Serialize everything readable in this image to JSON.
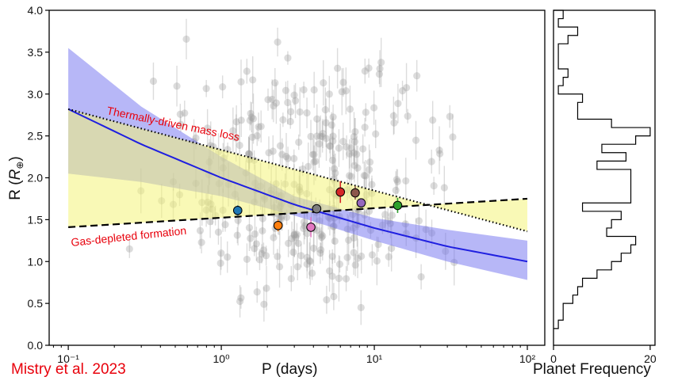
{
  "credit": "Mistry et al. 2023",
  "chart_data": [
    {
      "type": "scatter",
      "title": "",
      "xlabel": "P (days)",
      "ylabel": "R (R⊕)",
      "xscale": "log",
      "xlim": [
        0.075,
        130
      ],
      "ylim": [
        0.0,
        4.0
      ],
      "xticks": [
        0.1,
        1,
        10,
        100
      ],
      "xtick_labels": [
        "10⁻¹",
        "10⁰",
        "10¹",
        "10²"
      ],
      "yticks": [
        0.0,
        0.5,
        1.0,
        1.5,
        2.0,
        2.5,
        3.0,
        3.5,
        4.0
      ],
      "ytick_labels": [
        "0.0",
        "0.5",
        "1.0",
        "1.5",
        "2.0",
        "2.5",
        "3.0",
        "3.5",
        "4.0"
      ],
      "colors": {
        "blue_line": "#1f1fe0",
        "blue_band": "#6f6ff0",
        "yellow_band": "#f4f47a",
        "annotation": "#e8000b",
        "background_points": "#9a9a9a"
      },
      "annotations": [
        {
          "text": "Thermally-driven mass loss",
          "color": "#e8000b"
        },
        {
          "text": "Gas-depleted formation",
          "color": "#e8000b"
        }
      ],
      "series": [
        {
          "name": "Thermally-driven mass loss boundary",
          "style": "dotted",
          "color": "#000000",
          "x": [
            0.1,
            100
          ],
          "y": [
            2.82,
            1.36
          ]
        },
        {
          "name": "Gas-depleted formation boundary",
          "style": "dashed",
          "color": "#000000",
          "x": [
            0.1,
            100
          ],
          "y": [
            1.41,
            1.75
          ]
        },
        {
          "name": "Fitted radius valley",
          "style": "solid",
          "color": "#1f1fe0",
          "x": [
            0.1,
            0.3,
            1,
            3,
            10,
            30,
            100
          ],
          "y": [
            2.82,
            2.4,
            2.0,
            1.68,
            1.4,
            1.18,
            1.0
          ]
        },
        {
          "name": "Fit uncertainty upper",
          "x": [
            0.1,
            0.3,
            1,
            3,
            10,
            30,
            100
          ],
          "y": [
            3.55,
            2.85,
            2.25,
            1.78,
            1.52,
            1.38,
            1.25
          ]
        },
        {
          "name": "Fit uncertainty lower",
          "x": [
            0.1,
            0.3,
            1,
            3,
            10,
            30,
            100
          ],
          "y": [
            2.05,
            1.95,
            1.78,
            1.55,
            1.25,
            1.0,
            0.78
          ]
        }
      ],
      "highlighted_points": [
        {
          "p": 1.28,
          "r": 1.61,
          "color": "#1f77b4",
          "err": 0.06
        },
        {
          "p": 2.35,
          "r": 1.43,
          "color": "#ff7f0e",
          "err": 0.07
        },
        {
          "p": 3.85,
          "r": 1.41,
          "color": "#e377c2",
          "err": 0.12
        },
        {
          "p": 4.2,
          "r": 1.63,
          "color": "#7f7f7f",
          "err": 0.05
        },
        {
          "p": 6.0,
          "r": 1.83,
          "color": "#d62728",
          "err": 0.13
        },
        {
          "p": 7.5,
          "r": 1.82,
          "color": "#8c564b",
          "err": 0.08
        },
        {
          "p": 8.2,
          "r": 1.7,
          "color": "#9467bd",
          "err": 0.05
        },
        {
          "p": 14.2,
          "r": 1.67,
          "color": "#2ca02c",
          "err": 0.09
        }
      ],
      "background_points_count": 320
    },
    {
      "type": "histogram",
      "orientation": "horizontal",
      "xlabel": "Planet Frequency",
      "xticks": [
        0,
        20
      ],
      "xlim": [
        0,
        21
      ],
      "ylim": [
        0.0,
        4.0
      ],
      "bin_edges": [
        0.2,
        0.3,
        0.4,
        0.5,
        0.6,
        0.7,
        0.8,
        0.9,
        1.0,
        1.1,
        1.2,
        1.3,
        1.4,
        1.5,
        1.6,
        1.7,
        1.8,
        1.9,
        2.0,
        2.1,
        2.2,
        2.3,
        2.4,
        2.5,
        2.6,
        2.7,
        2.8,
        2.9,
        3.0,
        3.1,
        3.2,
        3.3,
        3.4,
        3.5,
        3.6,
        3.7,
        3.8,
        3.9,
        4.0
      ],
      "counts": [
        1,
        2,
        2,
        4,
        5,
        6,
        9,
        12,
        14,
        16,
        17,
        11,
        12,
        14,
        6,
        16,
        16,
        16,
        16,
        9,
        15,
        10,
        17,
        20,
        12,
        5,
        5,
        6,
        1,
        2,
        3,
        1,
        1,
        1,
        3,
        5,
        1,
        2
      ]
    }
  ]
}
